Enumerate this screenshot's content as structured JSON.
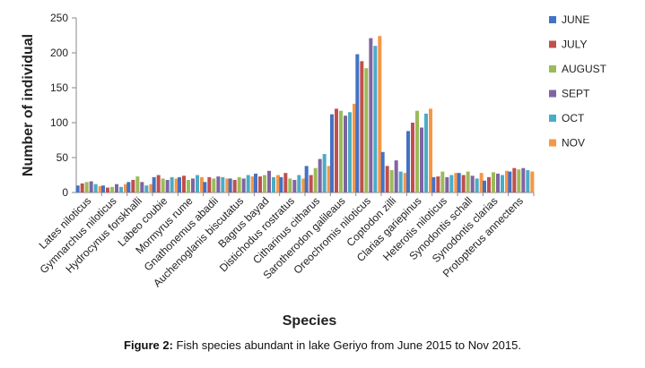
{
  "caption": {
    "label": "Figure 2:",
    "text": " Fish species abundant in lake Geriyo from June 2015 to Nov 2015."
  },
  "chart_data": {
    "type": "bar",
    "xlabel": "Species",
    "ylabel": "Number of individual",
    "ylim": [
      0,
      250
    ],
    "yticks": [
      0,
      50,
      100,
      150,
      200,
      250
    ],
    "grid": false,
    "legend_position": "right",
    "categories": [
      "Lates niloticus",
      "Gymnarchus niloticus",
      "Hydrocynus forskhalli",
      "Labeo coubie",
      "Mormyrus rume",
      "Gnathonemus abadii",
      "Auchenoglanis biscutatus",
      "Bagrus bayad",
      "Distichodus rostratus",
      "Citharinus citharus",
      "Sarotherodon galileaus",
      "Oreochromis niloticus",
      "Coptodon zilli",
      "Clarias gariepinus",
      "Heterotis niloticus",
      "Synodontis schall",
      "Synodontis clarias",
      "Protopterus annectens"
    ],
    "series": [
      {
        "name": "JUNE",
        "color": "#4472C4",
        "values": [
          10,
          10,
          15,
          22,
          22,
          15,
          20,
          27,
          22,
          38,
          112,
          198,
          58,
          88,
          22,
          28,
          17,
          30
        ]
      },
      {
        "name": "JULY",
        "color": "#C0504D",
        "values": [
          13,
          7,
          18,
          25,
          24,
          22,
          18,
          23,
          28,
          25,
          120,
          188,
          38,
          100,
          23,
          25,
          22,
          35
        ]
      },
      {
        "name": "AUGUST",
        "color": "#9BBB59",
        "values": [
          15,
          8,
          23,
          20,
          18,
          20,
          22,
          25,
          20,
          35,
          117,
          178,
          32,
          117,
          30,
          30,
          29,
          33
        ]
      },
      {
        "name": "SEPT",
        "color": "#8064A2",
        "values": [
          16,
          12,
          15,
          18,
          20,
          23,
          20,
          31,
          18,
          48,
          110,
          221,
          46,
          93,
          22,
          24,
          27,
          35
        ]
      },
      {
        "name": "OCT",
        "color": "#4BACC6",
        "values": [
          12,
          8,
          10,
          22,
          25,
          22,
          25,
          22,
          25,
          55,
          115,
          210,
          30,
          113,
          25,
          20,
          25,
          32
        ]
      },
      {
        "name": "NOV",
        "color": "#F79646",
        "values": [
          9,
          12,
          12,
          20,
          22,
          20,
          23,
          25,
          20,
          38,
          127,
          224,
          28,
          120,
          28,
          28,
          31,
          30
        ]
      }
    ]
  }
}
